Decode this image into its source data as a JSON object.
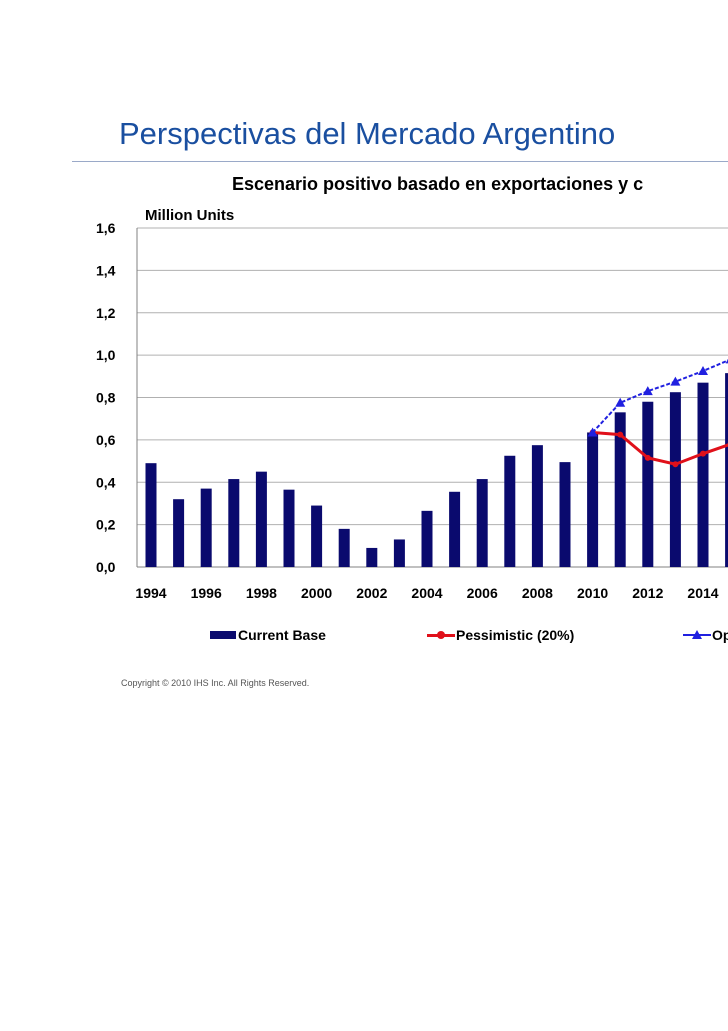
{
  "page": {
    "title": "Perspectivas del Mercado Argentino",
    "copyright": "Copyright © 2010 IHS Inc. All Rights Reserved."
  },
  "chart_data": {
    "type": "bar",
    "title": "Escenario positivo basado en exportaciones y c",
    "ylabel": "Million Units",
    "ylim": [
      0,
      1.6
    ],
    "y_ticks": [
      "0,0",
      "0,2",
      "0,4",
      "0,6",
      "0,8",
      "1,0",
      "1,2",
      "1,4",
      "1,6"
    ],
    "x_tick_labels": [
      "1994",
      "1996",
      "1998",
      "2000",
      "2002",
      "2004",
      "2006",
      "2008",
      "2010",
      "2012",
      "2014"
    ],
    "grid": true,
    "legend_position": "bottom",
    "colors": {
      "bars": "#0a0a6e",
      "pessimistic": "#e0101a",
      "optimistic": "#2020e0",
      "grid": "#b0b0b0"
    },
    "categories": [
      "1994",
      "1995",
      "1996",
      "1997",
      "1998",
      "1999",
      "2000",
      "2001",
      "2002",
      "2003",
      "2004",
      "2005",
      "2006",
      "2007",
      "2008",
      "2009",
      "2010",
      "2011",
      "2012",
      "2013",
      "2014",
      "2015"
    ],
    "series": [
      {
        "name": "Current Base",
        "kind": "bar",
        "values": [
          0.49,
          0.32,
          0.37,
          0.415,
          0.45,
          0.365,
          0.29,
          0.18,
          0.09,
          0.13,
          0.265,
          0.355,
          0.415,
          0.525,
          0.575,
          0.495,
          0.635,
          0.73,
          0.78,
          0.825,
          0.87,
          0.915
        ]
      },
      {
        "name": "Pessimistic (20%)",
        "kind": "line",
        "values": [
          null,
          null,
          null,
          null,
          null,
          null,
          null,
          null,
          null,
          null,
          null,
          null,
          null,
          null,
          null,
          null,
          0.635,
          0.625,
          0.515,
          0.485,
          0.535,
          0.58
        ]
      },
      {
        "name": "Optimistic",
        "label_visible": "Op",
        "kind": "line",
        "values": [
          null,
          null,
          null,
          null,
          null,
          null,
          null,
          null,
          null,
          null,
          null,
          null,
          null,
          null,
          null,
          null,
          0.635,
          0.775,
          0.83,
          0.875,
          0.925,
          0.98
        ]
      }
    ]
  }
}
